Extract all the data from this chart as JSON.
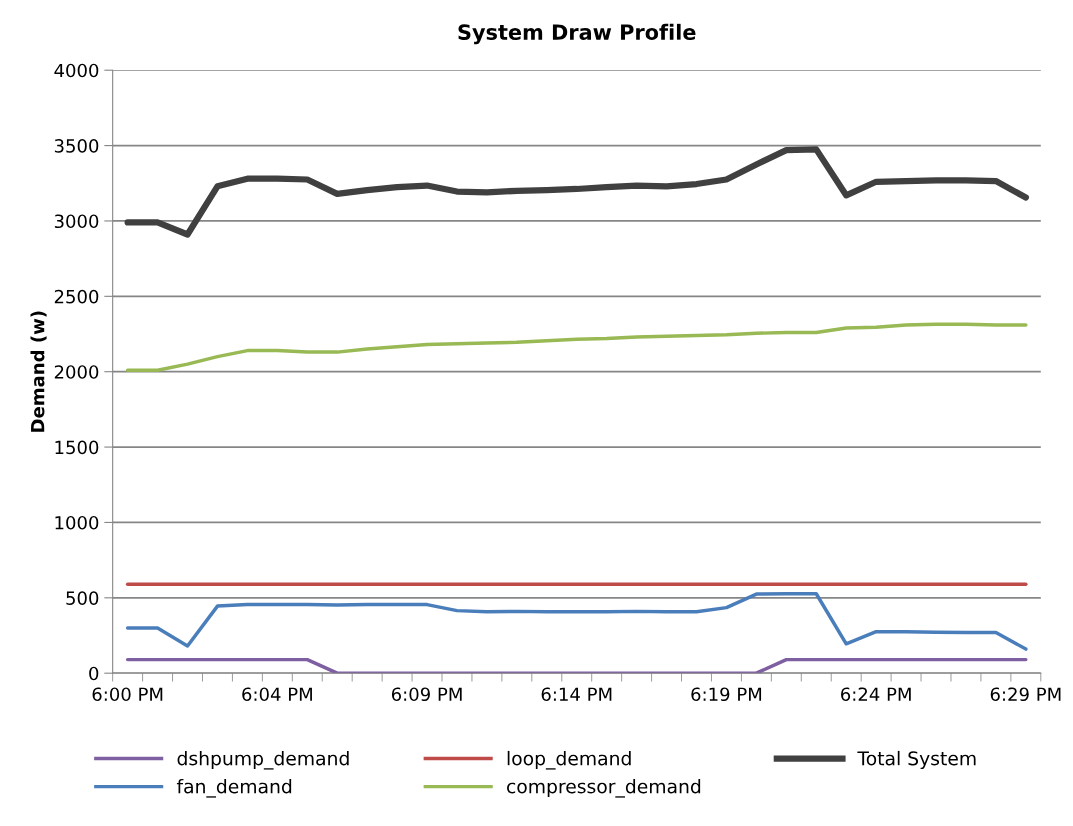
{
  "chart_data": {
    "type": "line",
    "title": "System Draw Profile",
    "ylabel": "Demand (w)",
    "categories": [
      "6:00 PM",
      null,
      null,
      null,
      null,
      "6:04 PM",
      null,
      null,
      null,
      null,
      "6:09 PM",
      null,
      null,
      null,
      null,
      "6:14 PM",
      null,
      null,
      null,
      null,
      "6:19 PM",
      null,
      null,
      null,
      null,
      "6:24 PM",
      null,
      null,
      null,
      null,
      "6:29 PM"
    ],
    "series": [
      {
        "name": "dshpump_demand",
        "color": "#7e5fa1",
        "values": [
          90,
          90,
          90,
          90,
          90,
          90,
          90,
          0,
          0,
          0,
          0,
          0,
          0,
          0,
          0,
          0,
          0,
          0,
          0,
          0,
          0,
          0,
          90,
          90,
          90,
          90,
          90,
          90,
          90,
          90,
          90
        ]
      },
      {
        "name": "fan_demand",
        "color": "#4a7ebb",
        "values": [
          300,
          300,
          180,
          445,
          455,
          455,
          455,
          452,
          455,
          455,
          455,
          415,
          408,
          410,
          407,
          407,
          407,
          410,
          407,
          407,
          435,
          525,
          527,
          527,
          195,
          275,
          275,
          272,
          270,
          270,
          160
        ]
      },
      {
        "name": "loop_demand",
        "color": "#be4b48",
        "values": [
          590,
          590,
          590,
          590,
          590,
          590,
          590,
          590,
          590,
          590,
          590,
          590,
          590,
          590,
          590,
          590,
          590,
          590,
          590,
          590,
          590,
          590,
          590,
          590,
          590,
          590,
          590,
          590,
          590,
          590,
          590
        ]
      },
      {
        "name": "compressor_demand",
        "color": "#98b954",
        "values": [
          2010,
          2010,
          2050,
          2100,
          2140,
          2140,
          2130,
          2130,
          2150,
          2165,
          2180,
          2185,
          2190,
          2195,
          2205,
          2215,
          2220,
          2230,
          2235,
          2240,
          2245,
          2255,
          2260,
          2260,
          2290,
          2295,
          2310,
          2315,
          2315,
          2310,
          2310
        ]
      },
      {
        "name": "Total System",
        "color": "#404040",
        "values": [
          2990,
          2990,
          2910,
          3230,
          3280,
          3280,
          3275,
          3180,
          3205,
          3225,
          3235,
          3195,
          3190,
          3200,
          3205,
          3212,
          3225,
          3235,
          3230,
          3245,
          3275,
          3375,
          3470,
          3475,
          3170,
          3260,
          3265,
          3270,
          3270,
          3265,
          3155
        ]
      }
    ],
    "ylim": [
      0,
      4000
    ],
    "yticks": [
      0,
      500,
      1000,
      1500,
      2000,
      2500,
      3000,
      3500,
      4000
    ],
    "grid": "y",
    "legend": "bottom",
    "marker": "none",
    "line_style": "solid"
  }
}
